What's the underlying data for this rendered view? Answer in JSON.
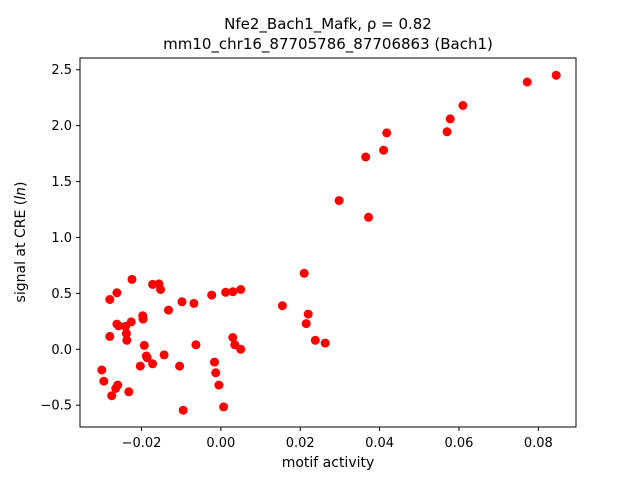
{
  "chart_data": {
    "type": "scatter",
    "title_line1": "Nfe2_Bach1_Mafk, ρ = 0.82",
    "title_line2": "mm10_chr16_87705786_87706863 (Bach1)",
    "xlabel": "motif activity",
    "ylabel": "signal at CRE (",
    "ylabel_italic": "ln",
    "ylabel_end": ")",
    "xlim": [
      -0.0355,
      0.0895
    ],
    "ylim": [
      -0.695,
      2.605
    ],
    "xticks": [
      -0.02,
      0.0,
      0.02,
      0.04,
      0.06,
      0.08
    ],
    "xtick_labels": [
      "−0.02",
      "0.00",
      "0.02",
      "0.04",
      "0.06",
      "0.08"
    ],
    "yticks": [
      -0.5,
      0.0,
      0.5,
      1.0,
      1.5,
      2.0,
      2.5
    ],
    "ytick_labels": [
      "−0.5",
      "0.0",
      "0.5",
      "1.0",
      "1.5",
      "2.0",
      "2.5"
    ],
    "grid": false,
    "marker_color": "#ff0000",
    "points": [
      [
        -0.03,
        -0.185
      ],
      [
        -0.0295,
        -0.285
      ],
      [
        -0.028,
        0.445
      ],
      [
        -0.028,
        0.115
      ],
      [
        -0.0275,
        -0.415
      ],
      [
        -0.0265,
        -0.35
      ],
      [
        -0.0262,
        0.505
      ],
      [
        -0.026,
        -0.32
      ],
      [
        -0.0262,
        0.225
      ],
      [
        -0.0258,
        0.21
      ],
      [
        -0.024,
        0.205
      ],
      [
        -0.0238,
        0.14
      ],
      [
        -0.0237,
        0.08
      ],
      [
        -0.0232,
        -0.38
      ],
      [
        -0.0226,
        0.245
      ],
      [
        -0.0224,
        0.625
      ],
      [
        -0.0203,
        -0.15
      ],
      [
        -0.0197,
        0.3
      ],
      [
        -0.0196,
        0.27
      ],
      [
        -0.0193,
        0.035
      ],
      [
        -0.0188,
        -0.06
      ],
      [
        -0.0186,
        -0.075
      ],
      [
        -0.0172,
        -0.13
      ],
      [
        -0.0172,
        0.58
      ],
      [
        -0.0156,
        0.585
      ],
      [
        -0.0152,
        0.535
      ],
      [
        -0.0143,
        -0.05
      ],
      [
        -0.0132,
        0.35
      ],
      [
        -0.0104,
        -0.15
      ],
      [
        -0.0098,
        0.425
      ],
      [
        -0.0095,
        -0.545
      ],
      [
        -0.0068,
        0.41
      ],
      [
        -0.0063,
        0.04
      ],
      [
        -0.0023,
        0.485
      ],
      [
        -0.0016,
        -0.115
      ],
      [
        -0.0013,
        -0.21
      ],
      [
        -0.0005,
        -0.32
      ],
      [
        0.0007,
        -0.515
      ],
      [
        0.0012,
        0.51
      ],
      [
        0.003,
        0.515
      ],
      [
        0.003,
        0.105
      ],
      [
        0.0035,
        0.04
      ],
      [
        0.005,
        0.535
      ],
      [
        0.005,
        0.0
      ],
      [
        0.0155,
        0.39
      ],
      [
        0.021,
        0.68
      ],
      [
        0.0215,
        0.23
      ],
      [
        0.022,
        0.315
      ],
      [
        0.0238,
        0.08
      ],
      [
        0.0263,
        0.055
      ],
      [
        0.0298,
        1.33
      ],
      [
        0.0365,
        1.72
      ],
      [
        0.0372,
        1.18
      ],
      [
        0.041,
        1.78
      ],
      [
        0.0418,
        1.935
      ],
      [
        0.057,
        1.945
      ],
      [
        0.0578,
        2.06
      ],
      [
        0.061,
        2.18
      ],
      [
        0.0772,
        2.39
      ],
      [
        0.0845,
        2.45
      ]
    ]
  }
}
